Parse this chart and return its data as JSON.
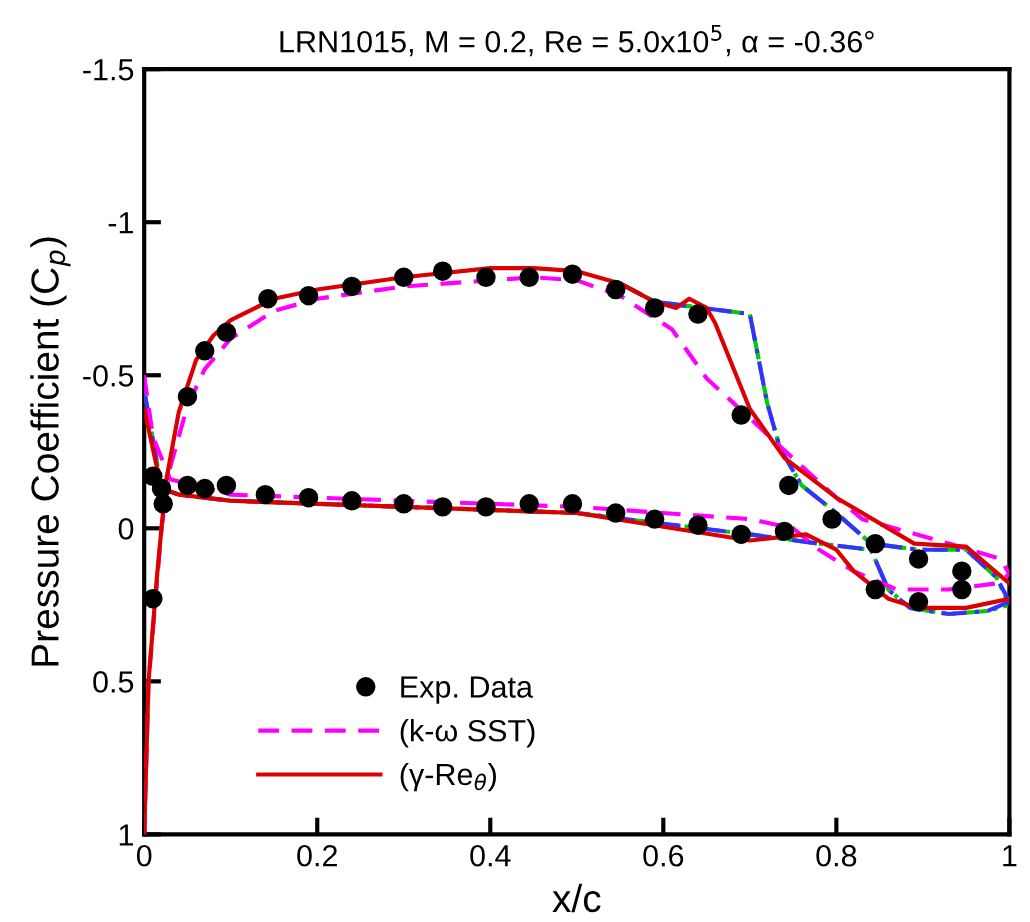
{
  "chart_data": {
    "type": "line",
    "title": "LRN1015, M = 0.2, Re = 5.0x10$^{5}$, α = -0.36°",
    "xlabel": "x/c",
    "ylabel": "Pressure Coefficient (C$_{p}$)",
    "xlim": [
      0,
      1
    ],
    "ylim": [
      1,
      -1.5
    ],
    "xticks": [
      0,
      0.2,
      0.4,
      0.6,
      0.8,
      1
    ],
    "yticks": [
      -1.5,
      -1,
      -0.5,
      0,
      0.5,
      1
    ],
    "grid": false,
    "legend": "bottom left",
    "series": [
      {
        "name": "Exp. Data",
        "type": "scatter",
        "marker": "circle",
        "color": "#000000",
        "x": [
          0.01,
          0.02,
          0.022,
          0.05,
          0.07,
          0.095,
          0.143,
          0.19,
          0.24,
          0.3,
          0.345,
          0.395,
          0.445,
          0.495,
          0.545,
          0.59,
          0.64,
          0.69,
          0.745,
          0.795,
          0.845,
          0.895,
          0.945,
          0.05,
          0.07,
          0.095,
          0.14,
          0.19,
          0.24,
          0.3,
          0.345,
          0.395,
          0.445,
          0.495,
          0.545,
          0.59,
          0.64,
          0.69,
          0.74,
          0.845,
          0.895,
          0.945,
          0.01
        ],
        "values": [
          -0.17,
          -0.13,
          -0.08,
          -0.43,
          -0.58,
          -0.64,
          -0.75,
          -0.76,
          -0.79,
          -0.82,
          -0.84,
          -0.82,
          -0.82,
          -0.83,
          -0.78,
          -0.72,
          -0.7,
          -0.37,
          -0.14,
          -0.03,
          0.05,
          0.1,
          0.14,
          -0.14,
          -0.13,
          -0.14,
          -0.11,
          -0.1,
          -0.09,
          -0.08,
          -0.07,
          -0.07,
          -0.08,
          -0.08,
          -0.05,
          -0.03,
          -0.01,
          0.02,
          0.01,
          0.2,
          0.24,
          0.2,
          0.23
        ]
      },
      {
        "name": null,
        "color": "#00cc00",
        "line_style": "dashdotdot",
        "x": [
          0.55,
          0.59,
          0.7,
          0.72,
          0.735,
          0.76,
          0.8,
          0.84,
          0.895,
          0.95,
          0.985,
          1.0
        ],
        "values": [
          -0.8,
          -0.74,
          -0.7,
          -0.41,
          -0.26,
          -0.14,
          -0.05,
          0.05,
          0.07,
          0.07,
          0.16,
          0.25
        ]
      },
      {
        "name": null,
        "color": "#00cc00",
        "line_style": "dashdotdot",
        "x": [
          0.0,
          0.02,
          0.04,
          0.1,
          0.3,
          0.5,
          0.7,
          0.78,
          0.84,
          0.86,
          0.885,
          0.93,
          0.975,
          1.0
        ],
        "values": [
          -0.45,
          -0.13,
          -0.11,
          -0.09,
          -0.07,
          -0.05,
          0.02,
          0.05,
          0.07,
          0.2,
          0.26,
          0.28,
          0.27,
          0.25
        ]
      },
      {
        "name": null,
        "color": "#3333ff",
        "line_style": "dashdot",
        "x": [
          0.55,
          0.59,
          0.7,
          0.72,
          0.735,
          0.76,
          0.8,
          0.84,
          0.895,
          0.95,
          0.985,
          1.0
        ],
        "values": [
          -0.8,
          -0.74,
          -0.7,
          -0.41,
          -0.26,
          -0.14,
          -0.05,
          0.05,
          0.07,
          0.07,
          0.16,
          0.24
        ]
      },
      {
        "name": null,
        "color": "#3333ff",
        "line_style": "dashdot",
        "x": [
          0.0,
          0.02,
          0.04,
          0.1,
          0.3,
          0.5,
          0.7,
          0.78,
          0.84,
          0.86,
          0.885,
          0.93,
          0.975,
          1.0
        ],
        "values": [
          -0.45,
          -0.13,
          -0.11,
          -0.09,
          -0.07,
          -0.05,
          0.02,
          0.05,
          0.07,
          0.2,
          0.26,
          0.28,
          0.27,
          0.24
        ]
      },
      {
        "name": "(k-ω SST)",
        "color": "#ff00ff",
        "line_style": "dashed",
        "x": [
          0.0,
          0.005,
          0.02,
          0.03,
          0.05,
          0.07,
          0.1,
          0.15,
          0.2,
          0.3,
          0.4,
          0.45,
          0.5,
          0.55,
          0.61,
          0.65,
          0.7,
          0.73,
          0.8,
          0.83,
          0.93,
          0.99,
          1.0
        ],
        "values": [
          1.0,
          0.5,
          0.0,
          -0.2,
          -0.4,
          -0.52,
          -0.62,
          -0.71,
          -0.75,
          -0.79,
          -0.81,
          -0.82,
          -0.81,
          -0.76,
          -0.65,
          -0.49,
          -0.36,
          -0.28,
          -0.1,
          -0.03,
          0.05,
          0.1,
          0.15
        ]
      },
      {
        "name": null,
        "color": "#ff00ff",
        "line_style": "dashed",
        "x": [
          0.0,
          0.01,
          0.03,
          0.1,
          0.3,
          0.5,
          0.7,
          0.75,
          0.78,
          0.82,
          0.87,
          0.93,
          0.985,
          1.0
        ],
        "values": [
          -0.5,
          -0.3,
          -0.16,
          -0.11,
          -0.09,
          -0.07,
          -0.03,
          0.0,
          0.07,
          0.14,
          0.2,
          0.2,
          0.18,
          0.15
        ]
      },
      {
        "name": "(γ-Re$_{θ}$)",
        "color": "#dd0000",
        "line_style": "solid",
        "x": [
          0.0,
          0.005,
          0.015,
          0.02,
          0.025,
          0.04,
          0.06,
          0.08,
          0.1,
          0.15,
          0.2,
          0.3,
          0.4,
          0.45,
          0.5,
          0.55,
          0.59,
          0.615,
          0.63,
          0.65,
          0.66,
          0.7,
          0.74,
          0.8,
          0.89,
          0.95,
          1.0
        ],
        "values": [
          1.0,
          0.5,
          0.15,
          0.0,
          -0.15,
          -0.38,
          -0.55,
          -0.63,
          -0.68,
          -0.75,
          -0.78,
          -0.82,
          -0.85,
          -0.85,
          -0.84,
          -0.8,
          -0.74,
          -0.72,
          -0.75,
          -0.72,
          -0.67,
          -0.39,
          -0.23,
          -0.1,
          0.05,
          0.06,
          0.18
        ]
      },
      {
        "name": null,
        "color": "#dd0000",
        "line_style": "solid",
        "x": [
          0.0,
          0.02,
          0.04,
          0.1,
          0.3,
          0.5,
          0.7,
          0.765,
          0.8,
          0.82,
          0.86,
          0.895,
          0.95,
          1.0
        ],
        "values": [
          -0.39,
          -0.13,
          -0.11,
          -0.09,
          -0.07,
          -0.05,
          0.04,
          0.02,
          0.07,
          0.14,
          0.23,
          0.26,
          0.26,
          0.23
        ]
      }
    ]
  }
}
